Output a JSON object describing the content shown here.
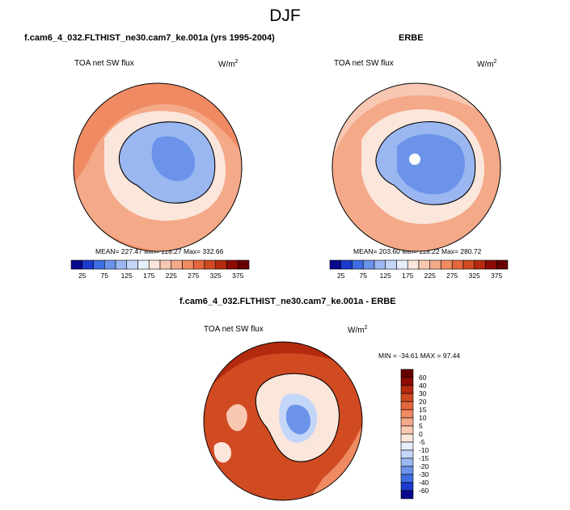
{
  "figure": {
    "title": "DJF",
    "panel_a_title": "f.cam6_4_032.FLTHIST_ne30.cam7_ke.001a (yrs 1995-2004)",
    "panel_b_title": "ERBE",
    "panel_c_title": "f.cam6_4_032.FLTHIST_ne30.cam7_ke.001a - ERBE",
    "variable": "TOA net SW flux",
    "units_base": "W/m",
    "units_exp": "2"
  },
  "chart_data": [
    {
      "type": "heatmap",
      "projection": "south-polar-stereographic",
      "title": "f.cam6_4_032.FLTHIST_ne30.cam7_ke.001a (yrs 1995-2004)",
      "variable": "TOA net SW flux",
      "units": "W/m^2",
      "stats_text": "MEAN= 227.47   Min= 118.27   Max= 332.66",
      "mean": 227.47,
      "min": 118.27,
      "max": 332.66,
      "colorbar_levels": [
        25,
        50,
        75,
        100,
        125,
        150,
        175,
        200,
        225,
        250,
        275,
        300,
        325,
        350,
        375
      ],
      "colorbar_labels": [
        "25",
        "75",
        "125",
        "175",
        "225",
        "275",
        "325",
        "375"
      ],
      "colorbar_orientation": "horizontal"
    },
    {
      "type": "heatmap",
      "projection": "south-polar-stereographic",
      "title": "ERBE",
      "variable": "TOA net SW flux",
      "units": "W/m^2",
      "stats_text": "MEAN= 203.60   Min= 118.22   Max= 280.72",
      "mean": 203.6,
      "min": 118.22,
      "max": 280.72,
      "colorbar_levels": [
        25,
        50,
        75,
        100,
        125,
        150,
        175,
        200,
        225,
        250,
        275,
        300,
        325,
        350,
        375
      ],
      "colorbar_labels": [
        "25",
        "75",
        "125",
        "175",
        "225",
        "275",
        "325",
        "375"
      ],
      "colorbar_orientation": "horizontal"
    },
    {
      "type": "heatmap",
      "projection": "south-polar-stereographic",
      "title": "f.cam6_4_032.FLTHIST_ne30.cam7_ke.001a - ERBE",
      "variable": "TOA net SW flux",
      "units": "W/m^2",
      "stats_text": "MIN = -34.61  MAX =  97.44",
      "min": -34.61,
      "max": 97.44,
      "colorbar_levels": [
        -60,
        -40,
        -30,
        -20,
        -15,
        -10,
        -5,
        0,
        5,
        10,
        15,
        20,
        30,
        40,
        60
      ],
      "colorbar_labels": [
        "60",
        "40",
        "30",
        "20",
        "15",
        "10",
        "5",
        "0",
        "-5",
        "-10",
        "-15",
        "-20",
        "-30",
        "-40",
        "-60"
      ],
      "colorbar_orientation": "vertical"
    }
  ],
  "colors": {
    "seq": [
      "#08088c",
      "#1c3acc",
      "#3e6ee2",
      "#6b93ea",
      "#9ab7f1",
      "#c4d6f7",
      "#e6eefc",
      "#fbe6dc",
      "#f8c8b2",
      "#f4a988",
      "#ef8a62",
      "#e4673e",
      "#d04a22",
      "#b32a0e",
      "#8c0b05",
      "#660000"
    ],
    "diff": [
      "#660000",
      "#8c0b05",
      "#b32a0e",
      "#d04a22",
      "#e4673e",
      "#ef8a62",
      "#f4a988",
      "#f8c8b2",
      "#fbe6dc",
      "#e6eefc",
      "#c4d6f7",
      "#9ab7f1",
      "#6b93ea",
      "#3e6ee2",
      "#1c3acc",
      "#08088c"
    ]
  }
}
